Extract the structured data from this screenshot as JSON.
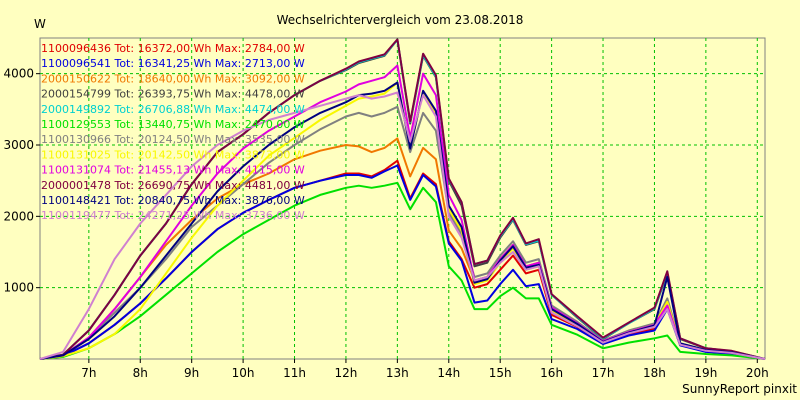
{
  "chart_data": {
    "type": "line",
    "title": "Wechselrichtervergleich vom 23.08.2018",
    "ylabel": "W",
    "credit": "SunnyReport pinxit",
    "grid": true,
    "legend_position": "top-left",
    "x_unit": "hour",
    "xlim": [
      6.05,
      20.15
    ],
    "ylim": [
      0,
      4500
    ],
    "x_ticks": [
      7,
      8,
      9,
      10,
      11,
      12,
      13,
      14,
      15,
      16,
      17,
      18,
      19,
      20
    ],
    "x_tick_labels": [
      "7h",
      "8h",
      "9h",
      "10h",
      "11h",
      "12h",
      "13h",
      "14h",
      "15h",
      "16h",
      "17h",
      "18h",
      "19h",
      "20h"
    ],
    "y_ticks": [
      1000,
      2000,
      3000,
      4000
    ],
    "y_tick_labels": [
      "1000",
      "2000",
      "3000",
      "4000"
    ],
    "x": [
      6.05,
      6.5,
      7.0,
      7.5,
      8.0,
      8.5,
      9.0,
      9.5,
      10.0,
      10.5,
      11.0,
      11.5,
      12.0,
      12.25,
      12.5,
      12.75,
      13.0,
      13.25,
      13.5,
      13.75,
      14.0,
      14.25,
      14.5,
      14.75,
      15.0,
      15.25,
      15.5,
      15.75,
      16.0,
      16.5,
      17.0,
      17.5,
      18.0,
      18.25,
      18.5,
      19.0,
      19.5,
      20.15
    ],
    "series": [
      {
        "name": "1100096436",
        "legend": "1100096436 Tot: 16372,00 Wh Max: 2784,00 W",
        "color": "#e00000",
        "values": [
          0,
          40,
          220,
          480,
          780,
          1130,
          1500,
          1820,
          2050,
          2230,
          2400,
          2500,
          2600,
          2600,
          2560,
          2650,
          2780,
          2250,
          2600,
          2450,
          1650,
          1400,
          1000,
          1050,
          1250,
          1450,
          1200,
          1250,
          620,
          450,
          230,
          350,
          420,
          720,
          200,
          110,
          80,
          0
        ]
      },
      {
        "name": "1100096541",
        "legend": "1100096541 Tot: 16341,25 Wh Max: 2713,00 W",
        "color": "#0000e0",
        "values": [
          0,
          40,
          220,
          480,
          780,
          1130,
          1500,
          1820,
          2050,
          2230,
          2400,
          2500,
          2580,
          2580,
          2540,
          2630,
          2713,
          2230,
          2580,
          2420,
          1620,
          1380,
          790,
          820,
          1050,
          1250,
          1020,
          1050,
          560,
          420,
          210,
          330,
          400,
          700,
          190,
          100,
          70,
          0
        ]
      },
      {
        "name": "2000150622",
        "legend": "2000150622 Tot: 18640,00 Wh Max: 3092,00 W",
        "color": "#f07800",
        "values": [
          0,
          50,
          300,
          700,
          1150,
          1600,
          1950,
          2250,
          2450,
          2600,
          2800,
          2920,
          3000,
          2980,
          2900,
          2960,
          3092,
          2560,
          2960,
          2800,
          1800,
          1550,
          1100,
          1150,
          1400,
          1600,
          1300,
          1350,
          700,
          500,
          250,
          380,
          460,
          750,
          210,
          120,
          90,
          0
        ]
      },
      {
        "name": "2000154799",
        "legend": "2000154799 Tot: 26393,75 Wh Max: 4478,00 W",
        "color": "#404040",
        "values": [
          0,
          60,
          400,
          900,
          1450,
          1900,
          2450,
          2900,
          3150,
          3450,
          3700,
          3900,
          4050,
          4150,
          4200,
          4250,
          4478,
          3300,
          4250,
          3950,
          2500,
          2150,
          1300,
          1350,
          1700,
          1950,
          1600,
          1650,
          900,
          580,
          280,
          500,
          700,
          1200,
          280,
          150,
          110,
          0
        ]
      },
      {
        "name": "2000149892",
        "legend": "2000149892 Tot: 26706,88 Wh Max: 4474,00 W",
        "color": "#00d0d0",
        "values": [
          0,
          60,
          400,
          900,
          1450,
          1900,
          2450,
          2900,
          3150,
          3450,
          3700,
          3900,
          4060,
          4160,
          4210,
          4260,
          4474,
          3320,
          4260,
          3960,
          2520,
          2200,
          1330,
          1380,
          1720,
          1960,
          1610,
          1660,
          900,
          590,
          290,
          500,
          710,
          1210,
          290,
          150,
          110,
          0
        ]
      },
      {
        "name": "1100129553",
        "legend": "1100129553 Tot: 13440,75 Wh Max: 2470,00 W",
        "color": "#00e000",
        "values": [
          0,
          30,
          150,
          350,
          600,
          900,
          1200,
          1500,
          1750,
          1950,
          2150,
          2300,
          2400,
          2430,
          2400,
          2430,
          2470,
          2100,
          2400,
          2200,
          1300,
          1100,
          700,
          700,
          880,
          1000,
          850,
          850,
          480,
          340,
          150,
          230,
          290,
          330,
          100,
          70,
          50,
          0
        ]
      },
      {
        "name": "1100130966",
        "legend": "1100130966 Tot: 20124,50 Wh Max: 3535,00 W",
        "color": "#808080",
        "values": [
          0,
          50,
          300,
          650,
          1000,
          1400,
          1850,
          2150,
          2450,
          2750,
          3000,
          3220,
          3400,
          3450,
          3400,
          3450,
          3535,
          2900,
          3450,
          3200,
          2050,
          1750,
          1150,
          1200,
          1450,
          1650,
          1350,
          1400,
          750,
          520,
          260,
          400,
          500,
          850,
          220,
          130,
          95,
          0
        ]
      },
      {
        "name": "1100131025",
        "legend": "1100131025 Tot: 20142,50 Wh Max: 3873,00 W",
        "color": "#f8f800",
        "values": [
          0,
          40,
          150,
          350,
          700,
          1200,
          1700,
          2150,
          2500,
          2850,
          3100,
          3350,
          3550,
          3650,
          3680,
          3720,
          3873,
          2950,
          3750,
          3450,
          2100,
          1800,
          1050,
          1100,
          1350,
          1550,
          1250,
          1300,
          680,
          480,
          230,
          380,
          480,
          800,
          210,
          120,
          90,
          0
        ]
      },
      {
        "name": "1100131074",
        "legend": "1100131074 Tot: 21455,13 Wh Max: 4115,00 W",
        "color": "#e000e0",
        "values": [
          0,
          50,
          300,
          700,
          1150,
          1650,
          2150,
          2600,
          2950,
          3200,
          3400,
          3600,
          3750,
          3850,
          3900,
          3950,
          4115,
          3100,
          4000,
          3700,
          2300,
          1950,
          1100,
          1150,
          1400,
          1600,
          1300,
          1350,
          720,
          500,
          250,
          380,
          480,
          750,
          210,
          120,
          90,
          0
        ]
      },
      {
        "name": "2000001478",
        "legend": "2000001478 Tot: 26690,75 Wh Max: 4481,00 W",
        "color": "#800040",
        "values": [
          0,
          60,
          400,
          900,
          1450,
          1900,
          2450,
          2900,
          3150,
          3450,
          3700,
          3900,
          4070,
          4170,
          4220,
          4270,
          4481,
          3330,
          4280,
          3980,
          2530,
          2200,
          1330,
          1380,
          1730,
          1980,
          1620,
          1680,
          910,
          600,
          300,
          510,
          720,
          1230,
          290,
          150,
          115,
          0
        ]
      },
      {
        "name": "1100148421",
        "legend": "1100148421 Tot: 20840,75 Wh Max: 3876,00 W",
        "color": "#000080",
        "values": [
          0,
          50,
          280,
          600,
          1000,
          1450,
          1900,
          2350,
          2700,
          3000,
          3250,
          3450,
          3600,
          3700,
          3720,
          3760,
          3876,
          2950,
          3760,
          3480,
          2150,
          1850,
          1070,
          1120,
          1380,
          1580,
          1280,
          1320,
          700,
          490,
          240,
          370,
          470,
          1150,
          220,
          125,
          95,
          0
        ]
      },
      {
        "name": "1100119477",
        "legend": "1100119477 Tot: 24271,25 Wh Max: 3736,00 W",
        "color": "#d080d0",
        "values": [
          0,
          100,
          700,
          1400,
          1900,
          2300,
          2700,
          3000,
          3200,
          3350,
          3450,
          3550,
          3650,
          3700,
          3650,
          3680,
          3736,
          3050,
          3700,
          3400,
          2000,
          1700,
          1100,
          1150,
          1350,
          1500,
          1250,
          1300,
          650,
          460,
          230,
          360,
          450,
          700,
          200,
          115,
          85,
          0
        ]
      }
    ]
  }
}
